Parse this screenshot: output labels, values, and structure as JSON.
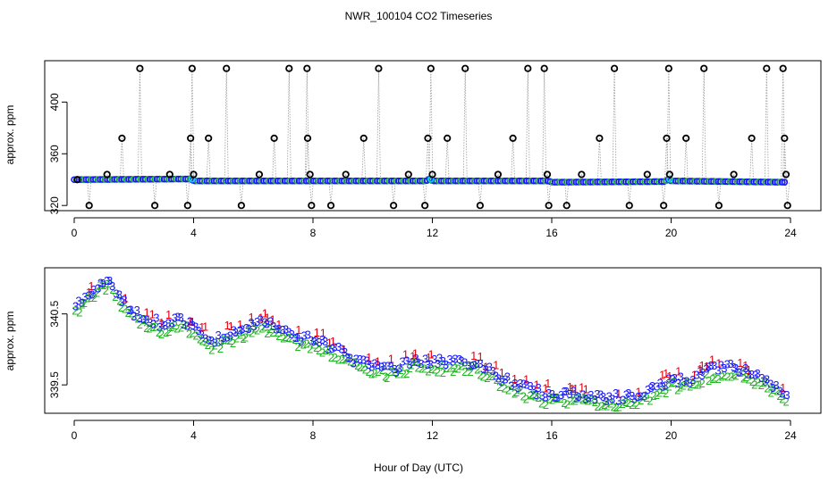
{
  "title": "NWR_100104  CO2 Timeseries",
  "xlabel": "Hour of Day (UTC)",
  "colors": {
    "axis": "#000000",
    "drop_line": "#9a9a9a",
    "marker_outline": "#000000",
    "series1": "#e8000b",
    "series2": "#22b422",
    "series3": "#1919ff",
    "highlight": "#00d0ff"
  },
  "chart_data": [
    {
      "type": "scatter",
      "panel": "top",
      "ylabel": "approx. ppm",
      "xlim": [
        0,
        24
      ],
      "ylim": [
        316,
        432
      ],
      "xticks": [
        0,
        4,
        8,
        12,
        16,
        20,
        24
      ],
      "xtick_labels": [
        "0",
        "4",
        "8",
        "12",
        "16",
        "20",
        "24"
      ],
      "yticks": [
        320,
        360,
        400
      ],
      "ytick_labels": [
        "320",
        "360",
        "400"
      ],
      "baseline": [
        [
          0,
          340
        ],
        [
          3.9,
          340.5
        ],
        [
          4.0,
          339
        ],
        [
          11.8,
          339
        ],
        [
          11.9,
          340.5
        ],
        [
          12.0,
          339
        ],
        [
          15.9,
          339
        ],
        [
          16.0,
          338
        ],
        [
          19.8,
          338.5
        ],
        [
          19.9,
          340.5
        ],
        [
          20.0,
          339
        ],
        [
          23.8,
          338
        ]
      ],
      "outliers": [
        {
          "x": 0.1,
          "y": 340
        },
        {
          "x": 0.5,
          "y": 320
        },
        {
          "x": 1.1,
          "y": 344
        },
        {
          "x": 1.6,
          "y": 372
        },
        {
          "x": 2.2,
          "y": 426
        },
        {
          "x": 2.7,
          "y": 320
        },
        {
          "x": 3.2,
          "y": 344
        },
        {
          "x": 3.8,
          "y": 320
        },
        {
          "x": 3.9,
          "y": 372
        },
        {
          "x": 3.95,
          "y": 426
        },
        {
          "x": 4.0,
          "y": 344
        },
        {
          "x": 4.5,
          "y": 372
        },
        {
          "x": 5.1,
          "y": 426
        },
        {
          "x": 5.6,
          "y": 320
        },
        {
          "x": 6.2,
          "y": 344
        },
        {
          "x": 6.7,
          "y": 372
        },
        {
          "x": 7.2,
          "y": 426
        },
        {
          "x": 7.8,
          "y": 426
        },
        {
          "x": 7.82,
          "y": 372
        },
        {
          "x": 7.9,
          "y": 344
        },
        {
          "x": 7.95,
          "y": 320
        },
        {
          "x": 8.6,
          "y": 320
        },
        {
          "x": 9.1,
          "y": 344
        },
        {
          "x": 9.7,
          "y": 372
        },
        {
          "x": 10.2,
          "y": 426
        },
        {
          "x": 10.7,
          "y": 320
        },
        {
          "x": 11.2,
          "y": 344
        },
        {
          "x": 11.75,
          "y": 320
        },
        {
          "x": 11.85,
          "y": 372
        },
        {
          "x": 11.95,
          "y": 426
        },
        {
          "x": 12.0,
          "y": 344
        },
        {
          "x": 12.5,
          "y": 372
        },
        {
          "x": 13.1,
          "y": 426
        },
        {
          "x": 13.6,
          "y": 320
        },
        {
          "x": 14.2,
          "y": 344
        },
        {
          "x": 14.7,
          "y": 372
        },
        {
          "x": 15.2,
          "y": 426
        },
        {
          "x": 15.75,
          "y": 426
        },
        {
          "x": 15.85,
          "y": 344
        },
        {
          "x": 15.9,
          "y": 320
        },
        {
          "x": 16.5,
          "y": 320
        },
        {
          "x": 17.0,
          "y": 344
        },
        {
          "x": 17.6,
          "y": 372
        },
        {
          "x": 18.1,
          "y": 426
        },
        {
          "x": 18.6,
          "y": 320
        },
        {
          "x": 19.2,
          "y": 344
        },
        {
          "x": 19.75,
          "y": 320
        },
        {
          "x": 19.85,
          "y": 372
        },
        {
          "x": 19.92,
          "y": 426
        },
        {
          "x": 19.95,
          "y": 344
        },
        {
          "x": 20.5,
          "y": 372
        },
        {
          "x": 21.1,
          "y": 426
        },
        {
          "x": 21.6,
          "y": 320
        },
        {
          "x": 22.1,
          "y": 344
        },
        {
          "x": 22.7,
          "y": 372
        },
        {
          "x": 23.2,
          "y": 426
        },
        {
          "x": 23.75,
          "y": 426
        },
        {
          "x": 23.8,
          "y": 372
        },
        {
          "x": 23.85,
          "y": 344
        },
        {
          "x": 23.9,
          "y": 320
        }
      ]
    },
    {
      "type": "scatter",
      "panel": "bottom",
      "ylabel": "approx. ppm",
      "xlim": [
        0,
        24
      ],
      "ylim": [
        339.1,
        341.15
      ],
      "xticks": [
        0,
        4,
        8,
        12,
        16,
        20,
        24
      ],
      "xtick_labels": [
        "0",
        "4",
        "8",
        "12",
        "16",
        "20",
        "24"
      ],
      "yticks": [
        339.5,
        340.5
      ],
      "ytick_labels": [
        "339.5",
        "340.5"
      ],
      "series_labels": [
        "1",
        "2",
        "3"
      ],
      "trend": [
        [
          0,
          340.6
        ],
        [
          0.5,
          340.75
        ],
        [
          0.9,
          340.95
        ],
        [
          1.2,
          340.95
        ],
        [
          1.5,
          340.7
        ],
        [
          2,
          340.5
        ],
        [
          2.6,
          340.4
        ],
        [
          3,
          340.3
        ],
        [
          3.6,
          340.4
        ],
        [
          4.1,
          340.25
        ],
        [
          4.7,
          340.1
        ],
        [
          5.3,
          340.2
        ],
        [
          6,
          340.35
        ],
        [
          6.6,
          340.35
        ],
        [
          7.2,
          340.2
        ],
        [
          8,
          340.1
        ],
        [
          8.8,
          340
        ],
        [
          9.5,
          339.8
        ],
        [
          10.2,
          339.75
        ],
        [
          10.8,
          339.7
        ],
        [
          11.4,
          339.85
        ],
        [
          12,
          339.8
        ],
        [
          12.8,
          339.8
        ],
        [
          13.4,
          339.8
        ],
        [
          14.2,
          339.6
        ],
        [
          15,
          339.45
        ],
        [
          15.8,
          339.35
        ],
        [
          16.5,
          339.35
        ],
        [
          17.2,
          339.32
        ],
        [
          18,
          339.3
        ],
        [
          18.6,
          339.3
        ],
        [
          19.3,
          339.4
        ],
        [
          20,
          339.55
        ],
        [
          20.6,
          339.55
        ],
        [
          21.3,
          339.7
        ],
        [
          22,
          339.75
        ],
        [
          22.6,
          339.65
        ],
        [
          23.2,
          339.55
        ],
        [
          23.8,
          339.35
        ]
      ]
    }
  ]
}
